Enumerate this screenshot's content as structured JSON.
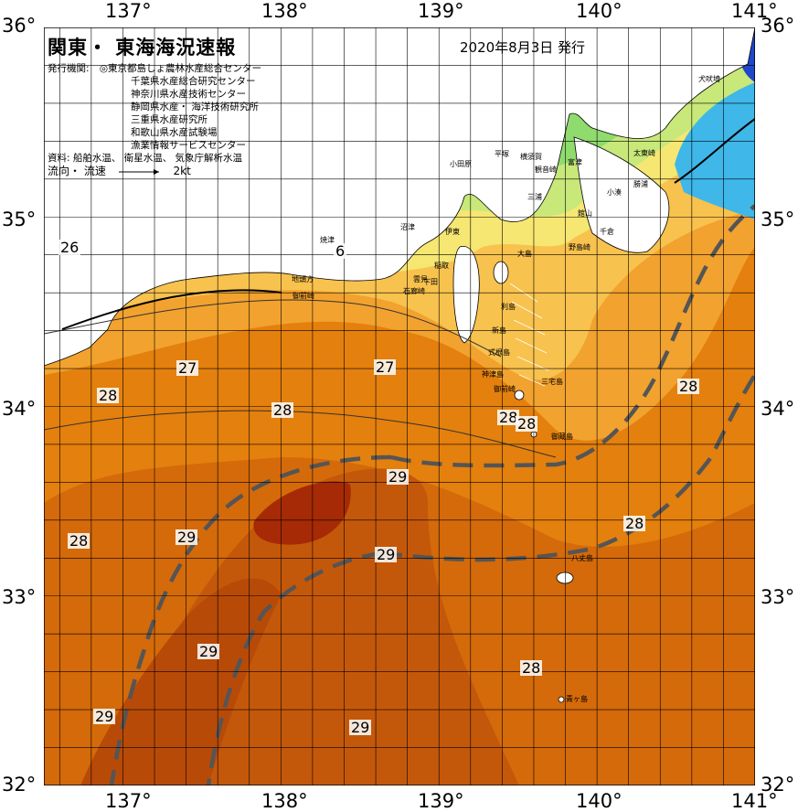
{
  "title": "関東・ 東海海況速報",
  "issue_date": "2020年8月3日 発行",
  "publisher": {
    "label": "発行機関:",
    "organizations": [
      "◎東京都島しょ農林水産総合センター",
      "千葉県水産総合研究センター",
      "神奈川県水産技術センター",
      "静岡県水産・ 海洋技術研究所",
      "三重県水産研究所",
      "和歌山県水産試験場",
      "漁業情報サービスセンター"
    ]
  },
  "data_source": "資料: 船舶水温、 衛星水温、 気象庁解析水温",
  "current_legend": {
    "label": "流向・ 流速",
    "scale": "2kt"
  },
  "axes": {
    "lon_ticks": [
      "137°",
      "138°",
      "139°",
      "140°",
      "141°"
    ],
    "lat_left_ticks": [
      "36°",
      "35°",
      "34°",
      "33°",
      "32°"
    ],
    "lat_right_ticks": [
      "36°",
      "35°",
      "34°",
      "33°",
      "32°"
    ],
    "lon_range": [
      136.5,
      141.0
    ],
    "lat_range": [
      32.0,
      36.0
    ]
  },
  "colors": {
    "water_warmest": "#a52a05",
    "water_29": "#cc5a08",
    "water_28": "#e4800d",
    "water_27_28": "#f2a22e",
    "water_27": "#f8c24e",
    "water_26": "#f6e672",
    "water_25": "#c8e87a",
    "water_24": "#8fdb6d",
    "water_cool": "#3fb7e8",
    "water_cold": "#1f47c9",
    "land": "#ffffff",
    "kuroshio_axis": "#555555",
    "grid": "#000000"
  },
  "isotherm_labels": [
    "26",
    "6",
    "27",
    "27",
    "28",
    "28",
    "28",
    "28",
    "28",
    "29",
    "29",
    "29",
    "28",
    "29",
    "29",
    "28",
    "29",
    "28"
  ],
  "place_names": [
    "犬吠埼",
    "太東崎",
    "勝浦",
    "小湊",
    "千倉",
    "野島崎",
    "館山",
    "富津",
    "観音崎",
    "横須賀",
    "平塚",
    "小田原",
    "伊東",
    "稲取",
    "下田",
    "沼津",
    "焼津",
    "地頭方",
    "御前崎",
    "石廊崎",
    "大島",
    "三宅島",
    "御蔵島",
    "八丈島",
    "青ヶ島",
    "神津島",
    "新島",
    "利島",
    "式根島",
    "三浦",
    "御前崎",
    "雲見"
  ]
}
